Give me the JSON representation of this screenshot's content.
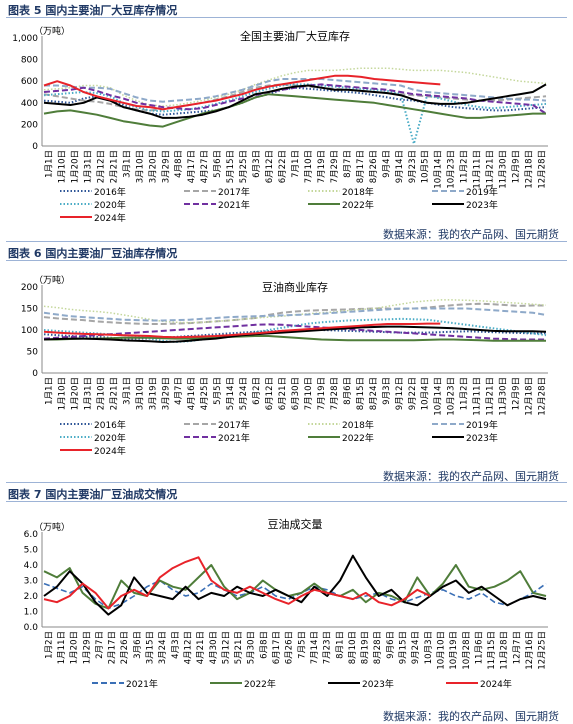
{
  "source_text": "数据来源：我的农产品网、国元期货",
  "colors": {
    "s2016": "#2e5597",
    "s2017": "#a6a6a6",
    "s2018": "#c4d79b",
    "s2019": "#8ea9c9",
    "s2020": "#4bacc6",
    "s2021": "#7030a0",
    "s2022": "#4f7d3a",
    "s2023": "#000000",
    "s2024": "#e8232a"
  },
  "chart_data": [
    {
      "figure_title": "图表 5  国内主要油厂大豆库存情况",
      "type": "line",
      "title": "全国主要油厂大豆库存",
      "unit": "（万吨）",
      "ylim": [
        0,
        1000
      ],
      "yticks": [
        "1,000",
        "800",
        "600",
        "400",
        "200",
        "0"
      ],
      "xticks": [
        "1月1日",
        "1月10日",
        "1月20日",
        "1月31日",
        "2月12日",
        "2月21日",
        "3月1日",
        "3月10日",
        "3月20日",
        "3月29日",
        "4月8日",
        "4月17日",
        "4月27日",
        "5月6日",
        "5月15日",
        "5月25日",
        "6月3日",
        "6月12日",
        "6月22日",
        "7月1日",
        "7月10日",
        "7月19日",
        "7月29日",
        "8月7日",
        "8月17日",
        "8月26日",
        "9月4日",
        "9月14日",
        "9月23日",
        "10月5日",
        "10月14日",
        "10月23日",
        "11月2日",
        "11月11日",
        "11月21日",
        "11月30日",
        "12月9日",
        "12月18日",
        "12月28日"
      ],
      "series": [
        {
          "name": "2016年",
          "values": [
            420,
            410,
            400,
            440,
            460,
            430,
            380,
            330,
            300,
            290,
            300,
            310,
            320,
            330,
            360,
            400,
            450,
            480,
            520,
            540,
            530,
            520,
            510,
            500,
            490,
            470,
            450,
            430,
            420,
            400,
            380,
            360,
            350,
            340,
            330,
            330,
            340,
            350,
            360
          ]
        },
        {
          "name": "2017年",
          "values": [
            480,
            460,
            440,
            420,
            410,
            390,
            360,
            340,
            330,
            340,
            360,
            380,
            400,
            430,
            460,
            500,
            540,
            560,
            570,
            560,
            550,
            540,
            530,
            520,
            510,
            500,
            490,
            480,
            470,
            460,
            450,
            440,
            430,
            420,
            420,
            430,
            440,
            450,
            460
          ]
        },
        {
          "name": "2018年",
          "values": [
            520,
            530,
            540,
            560,
            560,
            540,
            470,
            420,
            380,
            370,
            380,
            400,
            420,
            450,
            480,
            520,
            570,
            610,
            650,
            680,
            700,
            700,
            700,
            710,
            720,
            720,
            720,
            710,
            700,
            700,
            700,
            690,
            680,
            660,
            640,
            620,
            600,
            590,
            580
          ]
        },
        {
          "name": "2019年",
          "values": [
            560,
            560,
            550,
            540,
            540,
            530,
            490,
            450,
            420,
            410,
            420,
            430,
            440,
            460,
            490,
            520,
            560,
            600,
            620,
            620,
            620,
            620,
            610,
            600,
            590,
            580,
            570,
            560,
            520,
            500,
            490,
            480,
            470,
            460,
            450,
            440,
            430,
            430,
            420
          ]
        },
        {
          "name": "2020年",
          "values": [
            470,
            480,
            490,
            500,
            490,
            460,
            400,
            360,
            330,
            320,
            330,
            340,
            360,
            390,
            420,
            460,
            500,
            530,
            560,
            570,
            570,
            560,
            550,
            540,
            530,
            520,
            510,
            480,
            20,
            470,
            440,
            410,
            380,
            360,
            350,
            360,
            370,
            380,
            390
          ]
        },
        {
          "name": "2021年",
          "values": [
            500,
            510,
            520,
            540,
            510,
            470,
            440,
            400,
            380,
            360,
            350,
            340,
            350,
            380,
            410,
            440,
            470,
            500,
            520,
            540,
            560,
            570,
            560,
            550,
            540,
            530,
            520,
            500,
            480,
            470,
            460,
            450,
            440,
            420,
            410,
            400,
            390,
            380,
            300
          ]
        },
        {
          "name": "2022年",
          "values": [
            300,
            320,
            330,
            310,
            290,
            260,
            230,
            210,
            190,
            180,
            220,
            260,
            300,
            330,
            360,
            400,
            450,
            480,
            470,
            460,
            450,
            440,
            430,
            420,
            410,
            400,
            380,
            360,
            340,
            320,
            300,
            280,
            260,
            260,
            270,
            280,
            290,
            300,
            300
          ]
        },
        {
          "name": "2023年",
          "values": [
            400,
            390,
            380,
            400,
            450,
            420,
            360,
            330,
            300,
            260,
            260,
            270,
            290,
            320,
            360,
            420,
            480,
            500,
            530,
            550,
            560,
            540,
            520,
            520,
            510,
            500,
            490,
            470,
            430,
            400,
            390,
            390,
            400,
            420,
            440,
            460,
            480,
            500,
            570
          ]
        },
        {
          "name": "2024年",
          "values": [
            560,
            600,
            560,
            500,
            460,
            430,
            400,
            370,
            360,
            340,
            360,
            380,
            400,
            420,
            450,
            480,
            520,
            550,
            570,
            590,
            610,
            630,
            650,
            650,
            640,
            620,
            610,
            600,
            590,
            580,
            570,
            null,
            null,
            null,
            null,
            null,
            null,
            null,
            null
          ]
        }
      ]
    },
    {
      "figure_title": "图表 6  国内主要油厂豆油库存情况",
      "type": "line",
      "title": "豆油商业库存",
      "unit": "（万吨）",
      "ylim": [
        0,
        200
      ],
      "yticks": [
        "200",
        "150",
        "100",
        "50",
        "0"
      ],
      "xticks": [
        "1月1日",
        "1月10日",
        "1月20日",
        "1月31日",
        "2月10日",
        "2月21日",
        "3月1日",
        "3月10日",
        "3月19日",
        "3月29日",
        "4月7日",
        "4月16日",
        "4月25日",
        "5月5日",
        "5月14日",
        "5月24日",
        "6月2日",
        "6月12日",
        "6月21日",
        "6月30日",
        "7月10日",
        "7月19日",
        "7月28日",
        "8月6日",
        "8月15日",
        "8月24日",
        "9月3日",
        "9月12日",
        "9月22日",
        "10月4日",
        "10月14日",
        "10月23日",
        "11月2日",
        "11月11日",
        "11月21日",
        "11月30日",
        "12月9日",
        "12月18日",
        "12月28日"
      ],
      "series": [
        {
          "name": "2016年",
          "values": [
            90,
            88,
            86,
            85,
            84,
            82,
            80,
            80,
            80,
            82,
            84,
            86,
            88,
            90,
            92,
            94,
            96,
            97,
            98,
            99,
            100,
            100,
            99,
            98,
            97,
            96,
            95,
            94,
            94,
            94,
            95,
            96,
            97,
            96,
            95,
            94,
            93,
            92,
            92
          ]
        },
        {
          "name": "2017年",
          "values": [
            130,
            127,
            125,
            123,
            120,
            118,
            116,
            115,
            114,
            114,
            115,
            116,
            118,
            120,
            122,
            125,
            128,
            135,
            140,
            143,
            145,
            146,
            147,
            148,
            149,
            150,
            150,
            149,
            150,
            152,
            155,
            158,
            160,
            161,
            160,
            158,
            156,
            157,
            157
          ]
        },
        {
          "name": "2018年",
          "values": [
            155,
            152,
            148,
            145,
            143,
            140,
            135,
            130,
            125,
            120,
            118,
            117,
            118,
            120,
            122,
            125,
            128,
            130,
            132,
            135,
            138,
            140,
            142,
            145,
            148,
            150,
            155,
            160,
            165,
            168,
            170,
            170,
            169,
            168,
            166,
            164,
            162,
            160,
            158
          ]
        },
        {
          "name": "2019年",
          "values": [
            140,
            136,
            132,
            130,
            128,
            126,
            124,
            123,
            122,
            122,
            123,
            124,
            126,
            128,
            130,
            131,
            132,
            133,
            134,
            135,
            136,
            138,
            140,
            142,
            144,
            146,
            148,
            150,
            150,
            150,
            150,
            150,
            150,
            148,
            146,
            144,
            142,
            140,
            135
          ]
        },
        {
          "name": "2020年",
          "values": [
            100,
            98,
            96,
            94,
            92,
            90,
            88,
            86,
            80,
            75,
            72,
            74,
            78,
            82,
            86,
            90,
            95,
            100,
            105,
            110,
            115,
            118,
            120,
            122,
            123,
            124,
            125,
            126,
            125,
            124,
            120,
            116,
            112,
            108,
            104,
            100,
            96,
            92,
            88
          ]
        },
        {
          "name": "2021年",
          "values": [
            80,
            82,
            84,
            86,
            88,
            90,
            92,
            94,
            96,
            98,
            100,
            102,
            104,
            106,
            108,
            110,
            112,
            113,
            112,
            110,
            108,
            106,
            104,
            102,
            100,
            98,
            96,
            94,
            92,
            90,
            88,
            86,
            84,
            82,
            80,
            79,
            78,
            78,
            78
          ]
        },
        {
          "name": "2022年",
          "values": [
            78,
            78,
            79,
            80,
            80,
            81,
            82,
            82,
            82,
            81,
            80,
            80,
            81,
            82,
            84,
            85,
            86,
            86,
            84,
            82,
            80,
            78,
            77,
            76,
            76,
            76,
            76,
            76,
            76,
            77,
            78,
            78,
            77,
            76,
            75,
            75,
            75,
            75,
            75
          ]
        },
        {
          "name": "2023年",
          "values": [
            78,
            79,
            80,
            80,
            79,
            78,
            76,
            75,
            74,
            72,
            73,
            75,
            78,
            80,
            84,
            88,
            90,
            92,
            94,
            96,
            98,
            100,
            102,
            104,
            106,
            107,
            108,
            108,
            107,
            106,
            105,
            104,
            102,
            100,
            98,
            97,
            97,
            97,
            96
          ]
        },
        {
          "name": "2024年",
          "values": [
            96,
            94,
            92,
            91,
            90,
            89,
            88,
            87,
            86,
            84,
            83,
            84,
            85,
            86,
            88,
            90,
            92,
            95,
            98,
            100,
            102,
            104,
            106,
            108,
            110,
            112,
            114,
            114,
            114,
            115,
            115,
            null,
            null,
            null,
            null,
            null,
            null,
            null,
            null
          ]
        }
      ]
    },
    {
      "figure_title": "图表 7  国内主要油厂豆油成交情况",
      "type": "line",
      "title": "豆油成交量",
      "unit": "（万吨）",
      "ylim": [
        0,
        6
      ],
      "yticks": [
        "6.0",
        "5.0",
        "4.0",
        "3.0",
        "2.0",
        "1.0",
        "0.0"
      ],
      "xticks": [
        "1月2日",
        "1月11日",
        "1月20日",
        "1月29日",
        "2月7日",
        "2月17日",
        "2月26日",
        "3月6日",
        "3月15日",
        "3月24日",
        "4月3日",
        "4月12日",
        "4月21日",
        "4月30日",
        "5月12日",
        "5月21日",
        "5月30日",
        "6月8日",
        "6月17日",
        "6月26日",
        "7月5日",
        "7月14日",
        "7月23日",
        "8月1日",
        "8月10日",
        "8月19日",
        "8月28日",
        "9月6日",
        "9月15日",
        "9月24日",
        "10月3日",
        "10月10日",
        "10月19日",
        "10月28日",
        "11月6日",
        "11月15日",
        "11月28日",
        "12月7日",
        "12月16日",
        "12月25日"
      ],
      "series": [
        {
          "name": "2021年",
          "values": [
            2.8,
            2.5,
            2.2,
            2.6,
            1.8,
            1.2,
            1.5,
            2.0,
            2.6,
            3.0,
            2.4,
            2.0,
            2.2,
            2.8,
            2.4,
            2.0,
            2.2,
            2.6,
            2.0,
            1.8,
            2.2,
            2.6,
            2.4,
            2.0,
            1.8,
            2.0,
            2.2,
            1.8,
            1.6,
            1.9,
            2.2,
            2.4,
            2.0,
            1.8,
            2.2,
            1.6,
            1.4,
            1.8,
            2.2,
            2.8
          ]
        },
        {
          "name": "2022年",
          "values": [
            3.6,
            3.2,
            3.8,
            2.2,
            1.5,
            1.2,
            3.0,
            2.2,
            2.0,
            3.0,
            2.6,
            2.4,
            3.2,
            4.0,
            2.6,
            1.8,
            2.2,
            3.0,
            2.4,
            2.0,
            2.2,
            2.8,
            2.2,
            2.0,
            2.4,
            1.6,
            2.2,
            2.0,
            1.6,
            3.2,
            2.0,
            2.8,
            4.0,
            2.6,
            2.4,
            2.6,
            3.0,
            3.6,
            2.2,
            2.0
          ]
        },
        {
          "name": "2023年",
          "values": [
            2.0,
            2.6,
            3.6,
            2.8,
            1.6,
            0.8,
            1.4,
            3.2,
            2.2,
            2.0,
            1.8,
            2.6,
            1.8,
            2.2,
            2.0,
            2.6,
            2.2,
            2.0,
            2.4,
            2.0,
            1.6,
            2.6,
            2.0,
            3.0,
            4.6,
            3.2,
            2.0,
            2.4,
            1.6,
            1.4,
            2.0,
            2.6,
            3.0,
            2.2,
            2.6,
            2.0,
            1.4,
            1.8,
            2.0,
            1.8
          ]
        },
        {
          "name": "2024年",
          "values": [
            1.8,
            1.6,
            2.0,
            2.8,
            2.2,
            1.2,
            2.0,
            2.4,
            2.0,
            3.2,
            3.8,
            4.2,
            4.5,
            3.0,
            2.4,
            2.2,
            2.6,
            2.2,
            1.8,
            1.5,
            2.0,
            2.4,
            2.2,
            2.0,
            1.8,
            2.2,
            1.6,
            1.4,
            1.8,
            2.4,
            2.0,
            null,
            null,
            null,
            null,
            null,
            null,
            null,
            null,
            null
          ]
        }
      ]
    }
  ]
}
